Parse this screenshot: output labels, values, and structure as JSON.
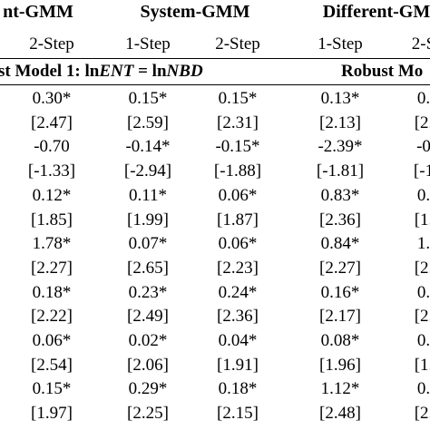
{
  "header": {
    "groups": [
      "nt-GMM",
      "System-GMM",
      "Different-GM"
    ],
    "steps": [
      "2-Step",
      "1-Step",
      "2-Step",
      "1-Step",
      "2-S"
    ]
  },
  "sections": {
    "left_prefix": "st Model 1: ln",
    "left_ent": "ENT",
    "left_eq": " = ln",
    "left_nbd": "NBD",
    "right": "Robust Mo"
  },
  "rows": [
    [
      "0.30*",
      "0.15*",
      "0.15*",
      "0.13*",
      "0."
    ],
    [
      "[2.47]",
      "[2.59]",
      "[2.31]",
      "[2.13]",
      "[2."
    ],
    [
      "-0.70",
      "-0.14*",
      "-0.15*",
      "-2.39*",
      "-0"
    ],
    [
      "[-1.33]",
      "[-2.94]",
      "[-1.88]",
      "[-1.81]",
      "[-1"
    ],
    [
      "0.12*",
      "0.11*",
      "0.06*",
      "0.83*",
      "0."
    ],
    [
      "[1.85]",
      "[1.99]",
      "[1.87]",
      "[2.36]",
      "[1."
    ],
    [
      "1.78*",
      "0.07*",
      "0.06*",
      "0.84*",
      "1."
    ],
    [
      "[2.27]",
      "[2.65]",
      "[2.23]",
      "[2.27]",
      "[2."
    ],
    [
      "0.18*",
      "0.23*",
      "0.24*",
      "0.16*",
      "0."
    ],
    [
      "[2.22]",
      "[2.49]",
      "[2.36]",
      "[2.17]",
      "[2."
    ],
    [
      "0.06*",
      "0.02*",
      "0.04*",
      "0.08*",
      "0."
    ],
    [
      "[2.54]",
      "[2.06]",
      "[1.91]",
      "[1.96]",
      "[1."
    ],
    [
      "0.15*",
      "0.29*",
      "0.18*",
      "1.12*",
      "0."
    ],
    [
      "[1.97]",
      "[2.25]",
      "[2.15]",
      "[2.48]",
      "[2."
    ]
  ]
}
